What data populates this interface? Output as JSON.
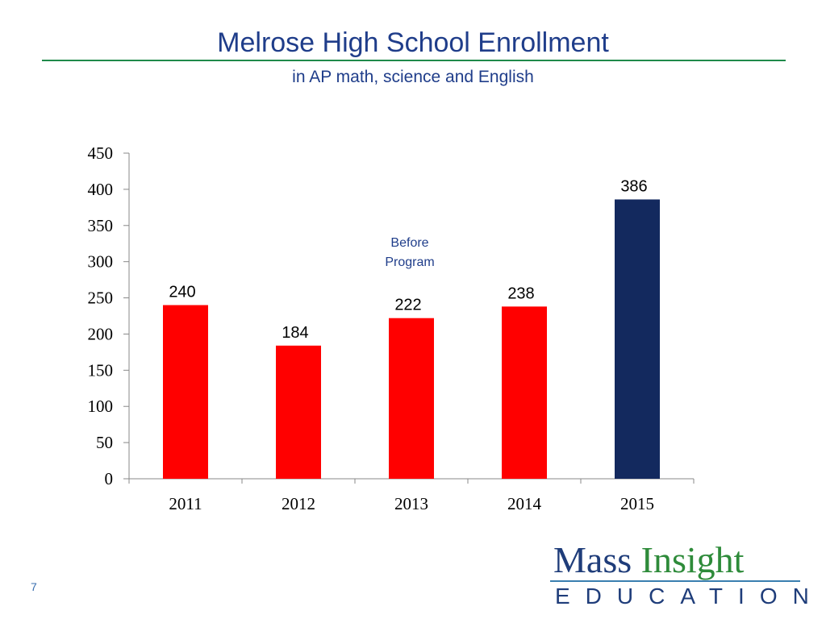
{
  "slide": {
    "title": "Melrose High School Enrollment",
    "subtitle": "in AP math, science  and English",
    "page_number": "7"
  },
  "logo": {
    "word1": "Mass",
    "word2": "Insight",
    "tagline": "EDUCATION"
  },
  "colors": {
    "title": "#1f3d8a",
    "title_rule": "#1f8a4a",
    "before_bars": "#ff0000",
    "after_bar": "#13295e"
  },
  "chart_data": {
    "type": "bar",
    "categories": [
      "2011",
      "2012",
      "2013",
      "2014",
      "2015"
    ],
    "values": [
      240,
      184,
      222,
      238,
      386
    ],
    "bar_colors": [
      "#ff0000",
      "#ff0000",
      "#ff0000",
      "#ff0000",
      "#13295e"
    ],
    "data_labels": [
      "240",
      "184",
      "222",
      "238",
      "386"
    ],
    "yticks": [
      0,
      50,
      100,
      150,
      200,
      250,
      300,
      350,
      400,
      450
    ],
    "ylim": [
      0,
      450
    ],
    "xlabel": "",
    "ylabel": "",
    "grid": false,
    "legend": "none",
    "annotations": [
      {
        "lines": [
          "Before",
          "Program"
        ]
      }
    ]
  }
}
